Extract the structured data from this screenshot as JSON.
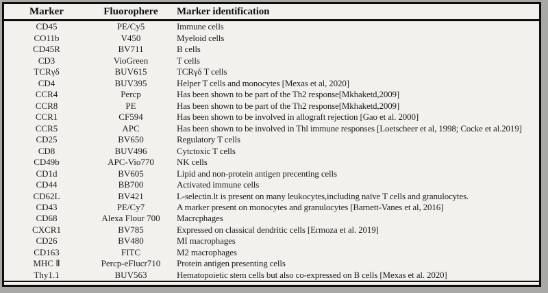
{
  "colors": {
    "page_background": "#a8a8a6",
    "table_background": "#f2f1ee",
    "border": "#0e0e0e",
    "text": "#1c1c1c"
  },
  "table": {
    "headers": {
      "marker": "Marker",
      "fluorophore": "Fluorophere",
      "identification": "Marker identification"
    },
    "rows": [
      {
        "marker": "CD45",
        "fluorophore": "PE/Cy5",
        "identification": "Immune cells"
      },
      {
        "marker": "CO11b",
        "fluorophore": "V450",
        "identification": "Myeloid cells"
      },
      {
        "marker": "CD45R",
        "fluorophore": "BV711",
        "identification": "B cells"
      },
      {
        "marker": "CD3",
        "fluorophore": "VioGreen",
        "identification": "T cells"
      },
      {
        "marker": "TCRγδ",
        "fluorophore": "BUV615",
        "identification": "TCRγδ T cells"
      },
      {
        "marker": "CD4",
        "fluorophore": "BUV395",
        "identification": "Helper T cells and monocytes [Mexas et al, 2020]"
      },
      {
        "marker": "CCR4",
        "fluorophore": "Percp",
        "identification": "Has been shown to be part of the Th2 response[Mkhaketd,2009]"
      },
      {
        "marker": "CCR8",
        "fluorophore": "PE",
        "identification": "Has been shown to be part of the Th2 response[Mkhaketd,2009]"
      },
      {
        "marker": "CCR1",
        "fluorophore": "CF594",
        "identification": "Has been shown to be involved in allograft rejection [Gao et al. 2000]"
      },
      {
        "marker": "CCR5",
        "fluorophore": "APC",
        "identification": "Has been shown to be involved in Thl immune responses [Loetscheer et al, 1998; Cocke et al.2019]"
      },
      {
        "marker": "CD25",
        "fluorophore": "BV650",
        "identification": "Regulatory T cells"
      },
      {
        "marker": "CD8",
        "fluorophore": "BUV496",
        "identification": "Cytctoxic T cells"
      },
      {
        "marker": "CD49b",
        "fluorophore": "APC-Vio770",
        "identification": "NK cells"
      },
      {
        "marker": "CD1d",
        "fluorophore": "BV605",
        "identification": "Lipid and non-protein antigen precenting cells"
      },
      {
        "marker": "CD44",
        "fluorophore": "BB700",
        "identification": "Activated immune cells"
      },
      {
        "marker": "CD62L",
        "fluorophore": "BV421",
        "identification": "L-selectin.lt is present on many leukocytes,including naïve T cells and granulocytes."
      },
      {
        "marker": "CD43",
        "fluorophore": "PE/Cy7",
        "identification": "A marker present on monocytes and granulocytes [Barnett-Vanes et al, 2016]"
      },
      {
        "marker": "CD68",
        "fluorophore": "Alexa Flour 700",
        "identification": "Macrcphages"
      },
      {
        "marker": "CXCR1",
        "fluorophore": "BV785",
        "identification": "Expressed on classical dendritic cells [Ermoza et al. 2019]"
      },
      {
        "marker": "CD26",
        "fluorophore": "BV480",
        "identification": "MI macrophages"
      },
      {
        "marker": "CD163",
        "fluorophore": "FITC",
        "identification": "M2 macrophages"
      },
      {
        "marker": "MHC Ⅱ",
        "fluorophore": "Percp-eFlucr710",
        "identification": "Protein antigen presenting cells"
      },
      {
        "marker": "Thy1.1",
        "fluorophore": "BUV563",
        "identification": "Hematopoietic stem cells but also co-expressed on B cells [Mexas et al. 2020]"
      }
    ]
  }
}
